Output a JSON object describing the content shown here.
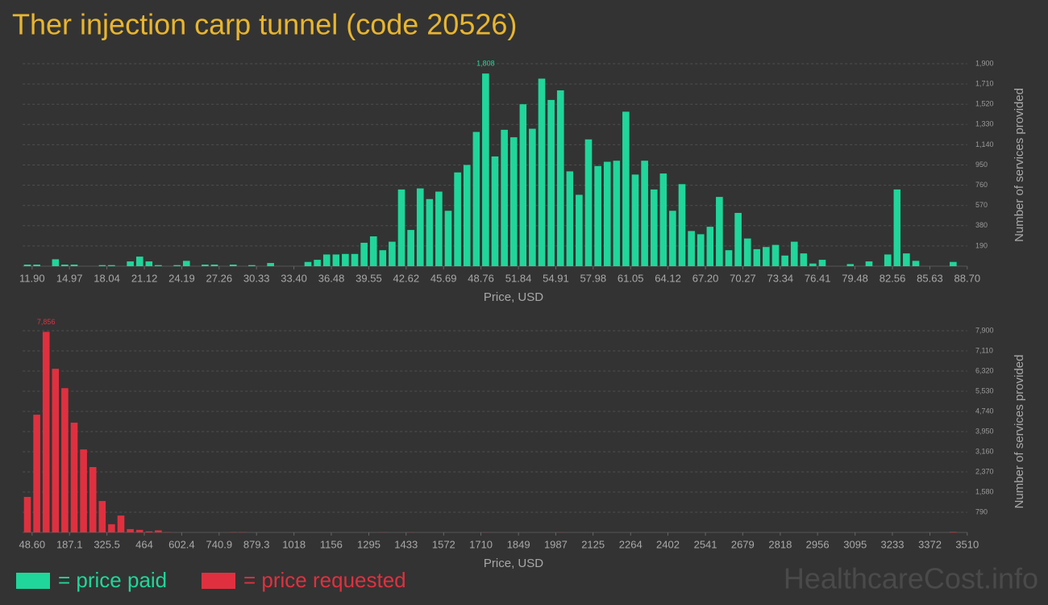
{
  "title": "Ther injection carp tunnel (code 20526)",
  "watermark": "HealthcareCost.info",
  "chart_data": [
    {
      "type": "histogram",
      "grid": true,
      "x_label": "Price, USD",
      "y_label": "Number of services provided",
      "bins": [
        11.13,
        11.9,
        12.67,
        13.44,
        14.2,
        14.97,
        15.74,
        16.51,
        17.28,
        18.04,
        18.81,
        19.58,
        20.35,
        21.12,
        21.88,
        22.65,
        23.42,
        24.19,
        24.96,
        25.72,
        26.49,
        27.26,
        28.03,
        28.8,
        29.56,
        30.33,
        31.1,
        31.87,
        32.64,
        33.4,
        34.17,
        34.94,
        35.71,
        36.48,
        37.24,
        38.01,
        38.78,
        39.55,
        40.32,
        41.08,
        41.85,
        42.62,
        43.39,
        44.16,
        44.92,
        45.69,
        46.46,
        47.23,
        48.0,
        48.76,
        49.53,
        50.3,
        51.07,
        51.84,
        52.6,
        53.37,
        54.14,
        54.91,
        55.68,
        56.44,
        57.21,
        57.98,
        58.75,
        59.52,
        60.28,
        61.05,
        61.82,
        62.59,
        63.36,
        64.12,
        64.89,
        65.66,
        66.43,
        67.2,
        67.96,
        68.73,
        69.5,
        70.27,
        71.04,
        71.8,
        72.57,
        73.34,
        74.11,
        74.88,
        75.64,
        76.41,
        77.18,
        77.95,
        78.72,
        79.48,
        80.25,
        81.02,
        81.79,
        82.56,
        83.32,
        84.09,
        84.86,
        85.63,
        86.4,
        87.16,
        87.93,
        88.7
      ],
      "series": [
        {
          "name": "= price paid",
          "color": "#20d69a",
          "values": [
            15,
            15,
            0,
            65,
            15,
            15,
            0,
            0,
            10,
            10,
            0,
            45,
            90,
            45,
            10,
            0,
            10,
            50,
            0,
            15,
            15,
            0,
            15,
            0,
            10,
            0,
            30,
            0,
            0,
            0,
            40,
            60,
            110,
            110,
            115,
            115,
            220,
            280,
            150,
            230,
            720,
            340,
            730,
            630,
            700,
            520,
            880,
            950,
            1260,
            1808,
            1030,
            1280,
            1210,
            1520,
            1290,
            1760,
            1560,
            1650,
            890,
            670,
            1190,
            940,
            980,
            990,
            1450,
            860,
            990,
            720,
            870,
            520,
            770,
            330,
            300,
            370,
            650,
            150,
            500,
            260,
            160,
            180,
            200,
            100,
            230,
            120,
            25,
            60,
            0,
            0,
            20,
            0,
            45,
            0,
            110,
            720,
            120,
            50,
            0,
            0,
            0,
            40,
            0
          ],
          "value_labels": [
            null,
            null,
            null,
            null,
            null,
            null,
            null,
            null,
            null,
            null,
            null,
            null,
            null,
            null,
            null,
            null,
            null,
            null,
            null,
            null,
            null,
            null,
            null,
            null,
            null,
            null,
            null,
            null,
            null,
            null,
            null,
            null,
            null,
            null,
            null,
            null,
            null,
            null,
            null,
            null,
            null,
            null,
            null,
            null,
            null,
            null,
            null,
            null,
            null,
            "1,808",
            null,
            null,
            null,
            null,
            null,
            null,
            null,
            null,
            null,
            null,
            null,
            null,
            null,
            null,
            null,
            null,
            null,
            null,
            null,
            null,
            null,
            null,
            null,
            null,
            null,
            null,
            null,
            null,
            null,
            null,
            null,
            null,
            null,
            null,
            null,
            null,
            null,
            null,
            null,
            null,
            null,
            null,
            null,
            null,
            null,
            null,
            null,
            null,
            null,
            null,
            null
          ]
        }
      ],
      "xlim": [
        11.13,
        88.7
      ],
      "xticks": [
        {
          "value": 11.9,
          "label": "11.90"
        },
        14.97,
        18.04,
        21.12,
        24.19,
        27.26,
        30.33,
        {
          "value": 33.4,
          "label": "33.40"
        },
        36.48,
        39.55,
        42.62,
        45.69,
        48.76,
        51.84,
        54.91,
        57.98,
        61.05,
        64.12,
        {
          "value": 67.2,
          "label": "67.20"
        },
        70.27,
        73.34,
        76.41,
        79.48,
        82.56,
        85.63,
        {
          "value": 88.7,
          "label": "88.70"
        }
      ],
      "ylim": [
        0,
        1900
      ],
      "yticks": [
        190,
        380,
        570,
        760,
        950,
        {
          "value": 1140,
          "label": "1,140"
        },
        {
          "value": 1330,
          "label": "1,330"
        },
        {
          "value": 1520,
          "label": "1,520"
        },
        {
          "value": 1710,
          "label": "1,710"
        },
        {
          "value": 1900,
          "label": "1,900"
        }
      ]
    },
    {
      "type": "histogram",
      "grid": true,
      "x_label": "Price, USD",
      "y_label": "Number of services provided",
      "bins": [
        13.99,
        48.6,
        83.21,
        117.83,
        152.44,
        187.06,
        221.67,
        256.28,
        290.9,
        325.51,
        360.13,
        394.74,
        429.35,
        463.97,
        498.58,
        533.2,
        567.81,
        602.42,
        637.04,
        671.65,
        706.27,
        740.88,
        775.49,
        810.11,
        844.72,
        879.34,
        913.95,
        948.56,
        983.18,
        1017.79,
        1052.41,
        1087.02,
        1121.63,
        1156.25,
        1190.86,
        1225.48,
        1260.09,
        1294.7,
        1329.32,
        1363.93,
        1398.55,
        1433.16,
        1467.77,
        1502.39,
        1537.0,
        1571.62,
        1606.23,
        1640.84,
        1675.46,
        1710.07,
        1744.69,
        1779.3,
        1813.91,
        1848.53,
        1883.14,
        1917.76,
        1952.37,
        1986.98,
        2021.6,
        2056.21,
        2090.83,
        2125.44,
        2160.05,
        2194.67,
        2229.28,
        2263.9,
        2298.51,
        2333.12,
        2367.74,
        2402.35,
        2436.97,
        2471.58,
        2506.19,
        2540.81,
        2575.42,
        2610.04,
        2644.65,
        2679.26,
        2713.88,
        2748.49,
        2783.11,
        2817.72,
        2852.33,
        2886.95,
        2921.56,
        2956.18,
        2990.79,
        3025.4,
        3060.02,
        3094.63,
        3129.25,
        3163.86,
        3198.47,
        3233.09,
        3267.7,
        3302.32,
        3336.93,
        3371.54,
        3406.16,
        3440.77,
        3475.39,
        3510.0
      ],
      "series": [
        {
          "name": "= price requested",
          "color": "#e0303f",
          "values": [
            1390,
            4610,
            7856,
            6410,
            5650,
            4300,
            3250,
            2560,
            1230,
            320,
            660,
            130,
            100,
            40,
            80,
            10,
            0,
            0,
            0,
            0,
            0,
            0,
            10,
            10,
            0,
            0,
            0,
            0,
            0,
            0,
            0,
            0,
            0,
            0,
            0,
            0,
            0,
            0,
            5,
            0,
            0,
            5,
            0,
            0,
            0,
            0,
            0,
            0,
            0,
            5,
            0,
            0,
            0,
            0,
            0,
            0,
            0,
            5,
            0,
            0,
            0,
            0,
            0,
            0,
            0,
            0,
            0,
            0,
            0,
            0,
            0,
            0,
            0,
            0,
            0,
            0,
            0,
            0,
            0,
            0,
            0,
            0,
            0,
            0,
            0,
            0,
            0,
            0,
            0,
            0,
            0,
            0,
            0,
            0,
            0,
            0,
            0,
            0,
            0,
            20,
            0
          ],
          "value_labels": [
            null,
            null,
            "7,856",
            null,
            null,
            null,
            null,
            null,
            null,
            null,
            null,
            null,
            null,
            null,
            null,
            null,
            null,
            null,
            null,
            null,
            null,
            null,
            null,
            null,
            null,
            null,
            null,
            null,
            null,
            null,
            null,
            null,
            null,
            null,
            null,
            null,
            null,
            null,
            null,
            null,
            null,
            null,
            null,
            null,
            null,
            null,
            null,
            null,
            null,
            null,
            null,
            null,
            null,
            null,
            null,
            null,
            null,
            null,
            null,
            null,
            null,
            null,
            null,
            null,
            null,
            null,
            null,
            null,
            null,
            null,
            null,
            null,
            null,
            null,
            null,
            null,
            null,
            null,
            null,
            null,
            null,
            null,
            null,
            null,
            null,
            null,
            null,
            null,
            null,
            null,
            null,
            null,
            null,
            null,
            null,
            null,
            null,
            null,
            null,
            null,
            null
          ]
        }
      ],
      "xlim": [
        13.99,
        3510
      ],
      "xticks": [
        {
          "value": 48.6,
          "label": "48.60"
        },
        187.1,
        325.5,
        464,
        602.4,
        740.9,
        879.3,
        1018,
        1156,
        1295,
        1433,
        1572,
        1710,
        1849,
        1987,
        2125,
        2264,
        2402,
        2541,
        2679,
        2818,
        2956,
        3095,
        3233,
        3372,
        3510
      ],
      "ylim": [
        0,
        7900
      ],
      "yticks": [
        790,
        {
          "value": 1580,
          "label": "1,580"
        },
        {
          "value": 2370,
          "label": "2,370"
        },
        {
          "value": 3160,
          "label": "3,160"
        },
        {
          "value": 3950,
          "label": "3,950"
        },
        {
          "value": 4740,
          "label": "4,740"
        },
        {
          "value": 5530,
          "label": "5,530"
        },
        {
          "value": 6320,
          "label": "6,320"
        },
        {
          "value": 7110,
          "label": "7,110"
        },
        {
          "value": 7900,
          "label": "7,900"
        }
      ]
    }
  ]
}
